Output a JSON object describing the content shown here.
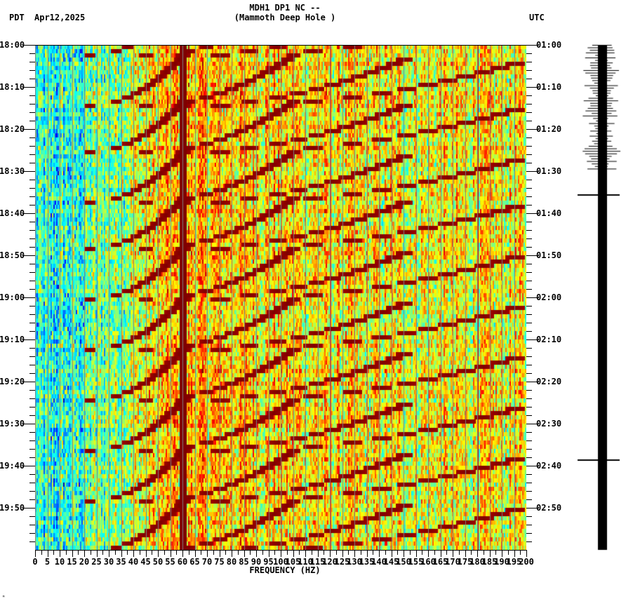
{
  "header": {
    "title_line1": "MDH1 DP1 NC --",
    "title_line2": "(Mammoth Deep Hole )",
    "left_timezone": "PDT",
    "date": "Apr12,2025",
    "right_timezone": "UTC"
  },
  "footer": {
    "corner_mark": "ᴹ"
  },
  "chart_data": {
    "type": "heatmap",
    "title": "MDH1 DP1 NC -- (Mammoth Deep Hole )",
    "subtitle": "Apr12,2025",
    "xlabel": "FREQUENCY (HZ)",
    "ylabel_left": "PDT",
    "ylabel_right": "UTC",
    "xlim": [
      0,
      200
    ],
    "x_ticks": [
      "0",
      "5",
      "10",
      "15",
      "20",
      "25",
      "30",
      "35",
      "40",
      "45",
      "50",
      "55",
      "60",
      "65",
      "70",
      "75",
      "80",
      "85",
      "90",
      "95",
      "100",
      "105",
      "110",
      "115",
      "120",
      "125",
      "130",
      "135",
      "140",
      "145",
      "150",
      "155",
      "160",
      "165",
      "170",
      "175",
      "180",
      "185",
      "190",
      "195",
      "200"
    ],
    "y_ticks_left": [
      "18:00",
      "18:10",
      "18:20",
      "18:30",
      "18:40",
      "18:50",
      "19:00",
      "19:10",
      "19:20",
      "19:30",
      "19:40",
      "19:50"
    ],
    "y_ticks_right": [
      "01:00",
      "01:10",
      "01:20",
      "01:30",
      "01:40",
      "01:50",
      "02:00",
      "02:10",
      "02:20",
      "02:30",
      "02:40",
      "02:50"
    ],
    "time_span_minutes": 120,
    "minor_tick_minutes": 2,
    "grid": {
      "vertical_every_hz": 5,
      "color": "#7f7f7f"
    },
    "colormap": "jet",
    "persistent_lines_hz": [
      60,
      120,
      180
    ],
    "description": "Repeating curved gliding tones (arcs) starting near 20-45 Hz rising into higher frequencies, recurring roughly every 10-12 minutes; strong 60 Hz hum line; broadband transient bands near 18:36 and 19:38 PDT",
    "arc_onsets_minutes": [
      2,
      14,
      25,
      37,
      48,
      60,
      72,
      84,
      96,
      108,
      120
    ],
    "broadband_events_minutes": [
      17.5,
      35.5,
      98.5
    ],
    "seismogram": {
      "large_spikes_minutes": [
        35.5,
        98.5
      ],
      "noisy_interval_minutes": [
        0,
        30
      ]
    }
  }
}
